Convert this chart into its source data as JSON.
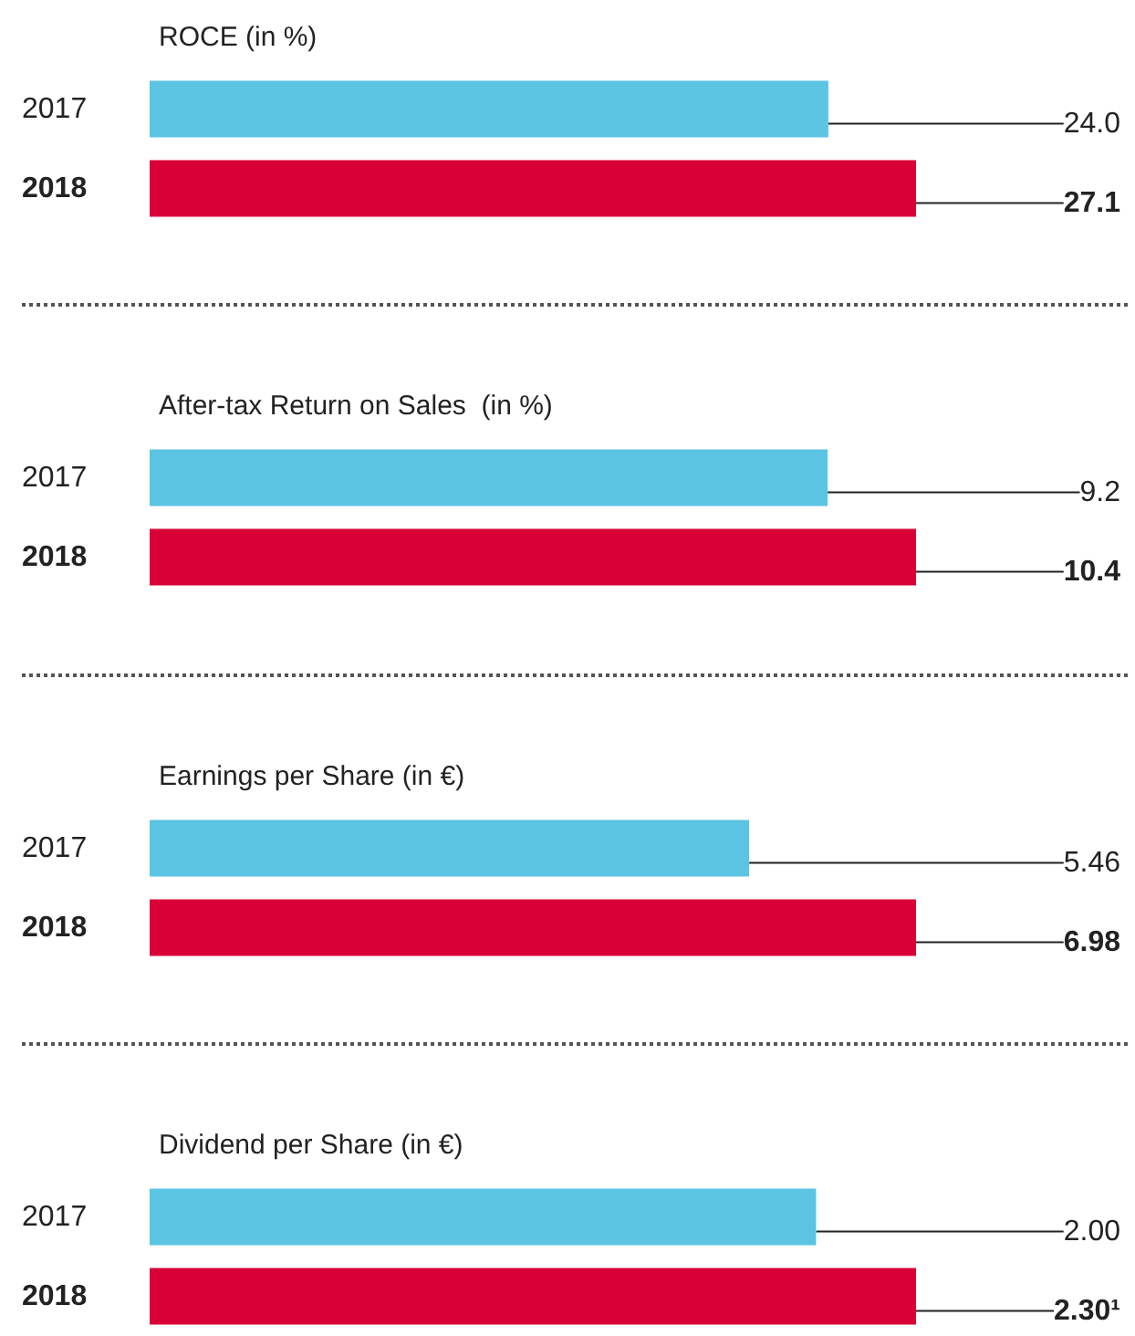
{
  "chart_data": [
    {
      "type": "bar",
      "orientation": "horizontal",
      "title": "ROCE (in %)",
      "categories": [
        "2017",
        "2018"
      ],
      "values": [
        24.0,
        27.1
      ],
      "colors": [
        "#5bc4e3",
        "#d90037"
      ],
      "value_labels": [
        "24.0",
        "27.1"
      ],
      "tick_labels": "y"
    },
    {
      "type": "bar",
      "orientation": "horizontal",
      "title": "After-tax Return on Sales  (in %)",
      "categories": [
        "2017",
        "2018"
      ],
      "values": [
        9.2,
        10.4
      ],
      "colors": [
        "#5bc4e3",
        "#d90037"
      ],
      "value_labels": [
        "9.2",
        "10.4"
      ],
      "tick_labels": "y"
    },
    {
      "type": "bar",
      "orientation": "horizontal",
      "title": "Earnings per Share (in €)",
      "categories": [
        "2017",
        "2018"
      ],
      "values": [
        5.46,
        6.98
      ],
      "colors": [
        "#5bc4e3",
        "#d90037"
      ],
      "value_labels": [
        "5.46",
        "6.98"
      ],
      "tick_labels": "y"
    },
    {
      "type": "bar",
      "orientation": "horizontal",
      "title": "Dividend per Share (in €)",
      "categories": [
        "2017",
        "2018"
      ],
      "values": [
        2.0,
        2.3
      ],
      "colors": [
        "#5bc4e3",
        "#d90037"
      ],
      "value_labels": [
        "2.00",
        "2.30¹"
      ],
      "tick_labels": "y"
    }
  ]
}
